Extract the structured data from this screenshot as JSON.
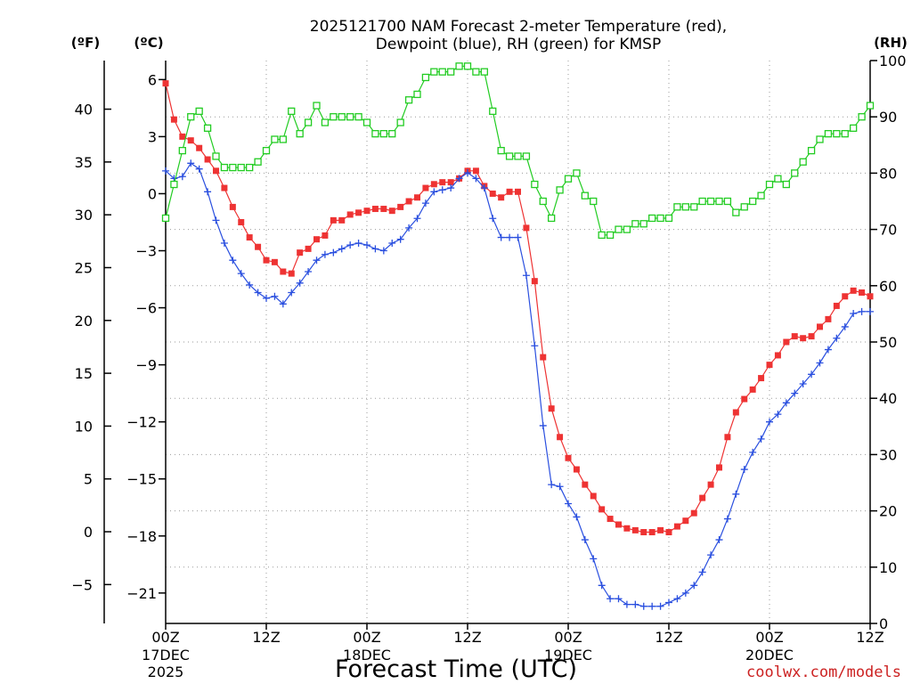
{
  "chart_data": {
    "type": "line",
    "title_line1": "2025121700 NAM Forecast 2-meter Temperature (red),",
    "title_line2": "Dewpoint (blue), RH (green) for KMSP",
    "unit_f": "(ºF)",
    "unit_c": "(ºC)",
    "unit_rh": "(RH)",
    "xlabel": "Forecast Time (UTC)",
    "credit": "coolwx.com/models",
    "x_hours_range": [
      0,
      84
    ],
    "c_range": [
      -22.6,
      7.0
    ],
    "rh_range": [
      0,
      100
    ],
    "c_ticks": [
      6,
      3,
      0,
      -3,
      -6,
      -9,
      -12,
      -15,
      -18,
      -21
    ],
    "c_tick_labels": [
      "6",
      "3",
      "0",
      "−3",
      "−6",
      "−9",
      "−12",
      "−15",
      "−18",
      "−21"
    ],
    "f_ticks": [
      40,
      35,
      30,
      25,
      20,
      15,
      10,
      5,
      0,
      -5
    ],
    "f_tick_labels": [
      "40",
      "35",
      "30",
      "25",
      "20",
      "15",
      "10",
      "5",
      "0",
      "−5"
    ],
    "rh_ticks": [
      100,
      90,
      80,
      70,
      60,
      50,
      40,
      30,
      20,
      10,
      0
    ],
    "rh_tick_labels": [
      "100",
      "90",
      "80",
      "70",
      "60",
      "50",
      "40",
      "30",
      "20",
      "10",
      "0"
    ],
    "x_ticks": [
      {
        "h": 0,
        "time": "00Z",
        "date": "17DEC",
        "year": "2025"
      },
      {
        "h": 12,
        "time": "12Z",
        "date": "",
        "year": ""
      },
      {
        "h": 24,
        "time": "00Z",
        "date": "18DEC",
        "year": ""
      },
      {
        "h": 36,
        "time": "12Z",
        "date": "",
        "year": ""
      },
      {
        "h": 48,
        "time": "00Z",
        "date": "19DEC",
        "year": ""
      },
      {
        "h": 60,
        "time": "12Z",
        "date": "",
        "year": ""
      },
      {
        "h": 72,
        "time": "00Z",
        "date": "20DEC",
        "year": ""
      },
      {
        "h": 84,
        "time": "12Z",
        "date": "",
        "year": ""
      }
    ],
    "series": [
      {
        "name": "Temperature",
        "unit": "C",
        "color": "#ee3333",
        "marker": "filled-square",
        "points": [
          [
            0,
            5.8
          ],
          [
            1,
            3.9
          ],
          [
            2,
            3.0
          ],
          [
            3,
            2.8
          ],
          [
            4,
            2.4
          ],
          [
            5,
            1.8
          ],
          [
            6,
            1.2
          ],
          [
            7,
            0.3
          ],
          [
            8,
            -0.7
          ],
          [
            9,
            -1.5
          ],
          [
            10,
            -2.3
          ],
          [
            11,
            -2.8
          ],
          [
            12,
            -3.5
          ],
          [
            13,
            -3.6
          ],
          [
            14,
            -4.1
          ],
          [
            15,
            -4.2
          ],
          [
            16,
            -3.1
          ],
          [
            17,
            -2.9
          ],
          [
            18,
            -2.4
          ],
          [
            19,
            -2.2
          ],
          [
            20,
            -1.4
          ],
          [
            21,
            -1.4
          ],
          [
            22,
            -1.1
          ],
          [
            23,
            -1.0
          ],
          [
            24,
            -0.9
          ],
          [
            25,
            -0.8
          ],
          [
            26,
            -0.8
          ],
          [
            27,
            -0.9
          ],
          [
            28,
            -0.7
          ],
          [
            29,
            -0.4
          ],
          [
            30,
            -0.2
          ],
          [
            31,
            0.3
          ],
          [
            32,
            0.5
          ],
          [
            33,
            0.6
          ],
          [
            34,
            0.6
          ],
          [
            35,
            0.8
          ],
          [
            36,
            1.2
          ],
          [
            37,
            1.2
          ],
          [
            38,
            0.4
          ],
          [
            39,
            0.0
          ],
          [
            40,
            -0.2
          ],
          [
            41,
            0.1
          ],
          [
            42,
            0.1
          ],
          [
            43,
            -1.8
          ],
          [
            44,
            -4.6
          ],
          [
            45,
            -8.6
          ],
          [
            46,
            -11.3
          ],
          [
            47,
            -12.8
          ],
          [
            48,
            -13.9
          ],
          [
            49,
            -14.5
          ],
          [
            50,
            -15.3
          ],
          [
            51,
            -15.9
          ],
          [
            52,
            -16.6
          ],
          [
            53,
            -17.1
          ],
          [
            54,
            -17.4
          ],
          [
            55,
            -17.6
          ],
          [
            56,
            -17.7
          ],
          [
            57,
            -17.8
          ],
          [
            58,
            -17.8
          ],
          [
            59,
            -17.7
          ],
          [
            60,
            -17.8
          ],
          [
            61,
            -17.5
          ],
          [
            62,
            -17.2
          ],
          [
            63,
            -16.8
          ],
          [
            64,
            -16.0
          ],
          [
            65,
            -15.3
          ],
          [
            66,
            -14.4
          ],
          [
            67,
            -12.8
          ],
          [
            68,
            -11.5
          ],
          [
            69,
            -10.8
          ],
          [
            70,
            -10.3
          ],
          [
            71,
            -9.7
          ],
          [
            72,
            -9.0
          ],
          [
            73,
            -8.5
          ],
          [
            74,
            -7.8
          ],
          [
            75,
            -7.5
          ],
          [
            76,
            -7.6
          ],
          [
            77,
            -7.5
          ],
          [
            78,
            -7.0
          ],
          [
            79,
            -6.6
          ],
          [
            80,
            -5.9
          ],
          [
            81,
            -5.4
          ],
          [
            82,
            -5.1
          ],
          [
            83,
            -5.2
          ],
          [
            84,
            -5.4
          ]
        ]
      },
      {
        "name": "Dewpoint",
        "unit": "C",
        "color": "#2a4fdf",
        "marker": "plus",
        "points": [
          [
            0,
            1.2
          ],
          [
            1,
            0.8
          ],
          [
            2,
            0.9
          ],
          [
            3,
            1.6
          ],
          [
            4,
            1.3
          ],
          [
            5,
            0.1
          ],
          [
            6,
            -1.4
          ],
          [
            7,
            -2.6
          ],
          [
            8,
            -3.5
          ],
          [
            9,
            -4.2
          ],
          [
            10,
            -4.8
          ],
          [
            11,
            -5.2
          ],
          [
            12,
            -5.5
          ],
          [
            13,
            -5.4
          ],
          [
            14,
            -5.8
          ],
          [
            15,
            -5.2
          ],
          [
            16,
            -4.7
          ],
          [
            17,
            -4.1
          ],
          [
            18,
            -3.5
          ],
          [
            19,
            -3.2
          ],
          [
            20,
            -3.1
          ],
          [
            21,
            -2.9
          ],
          [
            22,
            -2.7
          ],
          [
            23,
            -2.6
          ],
          [
            24,
            -2.7
          ],
          [
            25,
            -2.9
          ],
          [
            26,
            -3.0
          ],
          [
            27,
            -2.6
          ],
          [
            28,
            -2.4
          ],
          [
            29,
            -1.8
          ],
          [
            30,
            -1.3
          ],
          [
            31,
            -0.5
          ],
          [
            32,
            0.1
          ],
          [
            33,
            0.2
          ],
          [
            34,
            0.3
          ],
          [
            35,
            0.8
          ],
          [
            36,
            1.1
          ],
          [
            37,
            0.8
          ],
          [
            38,
            0.3
          ],
          [
            39,
            -1.3
          ],
          [
            40,
            -2.3
          ],
          [
            41,
            -2.3
          ],
          [
            42,
            -2.3
          ],
          [
            43,
            -4.3
          ],
          [
            44,
            -8.0
          ],
          [
            45,
            -12.2
          ],
          [
            46,
            -15.3
          ],
          [
            47,
            -15.4
          ],
          [
            48,
            -16.3
          ],
          [
            49,
            -17.0
          ],
          [
            50,
            -18.2
          ],
          [
            51,
            -19.2
          ],
          [
            52,
            -20.6
          ],
          [
            53,
            -21.3
          ],
          [
            54,
            -21.3
          ],
          [
            55,
            -21.6
          ],
          [
            56,
            -21.6
          ],
          [
            57,
            -21.7
          ],
          [
            58,
            -21.7
          ],
          [
            59,
            -21.7
          ],
          [
            60,
            -21.5
          ],
          [
            61,
            -21.3
          ],
          [
            62,
            -21.0
          ],
          [
            63,
            -20.6
          ],
          [
            64,
            -19.9
          ],
          [
            65,
            -19.0
          ],
          [
            66,
            -18.2
          ],
          [
            67,
            -17.1
          ],
          [
            68,
            -15.8
          ],
          [
            69,
            -14.5
          ],
          [
            70,
            -13.6
          ],
          [
            71,
            -12.9
          ],
          [
            72,
            -12.0
          ],
          [
            73,
            -11.6
          ],
          [
            74,
            -11.0
          ],
          [
            75,
            -10.5
          ],
          [
            76,
            -10.0
          ],
          [
            77,
            -9.5
          ],
          [
            78,
            -8.9
          ],
          [
            79,
            -8.2
          ],
          [
            80,
            -7.6
          ],
          [
            81,
            -7.0
          ],
          [
            82,
            -6.3
          ],
          [
            83,
            -6.2
          ],
          [
            84,
            -6.2
          ]
        ]
      },
      {
        "name": "RH",
        "unit": "%",
        "color": "#22cc22",
        "marker": "open-square",
        "points": [
          [
            0,
            72
          ],
          [
            1,
            78
          ],
          [
            2,
            84
          ],
          [
            3,
            90
          ],
          [
            4,
            91
          ],
          [
            5,
            88
          ],
          [
            6,
            83
          ],
          [
            7,
            81
          ],
          [
            8,
            81
          ],
          [
            9,
            81
          ],
          [
            10,
            81
          ],
          [
            11,
            82
          ],
          [
            12,
            84
          ],
          [
            13,
            86
          ],
          [
            14,
            86
          ],
          [
            15,
            91
          ],
          [
            16,
            87
          ],
          [
            17,
            89
          ],
          [
            18,
            92
          ],
          [
            19,
            89
          ],
          [
            20,
            90
          ],
          [
            21,
            90
          ],
          [
            22,
            90
          ],
          [
            23,
            90
          ],
          [
            24,
            89
          ],
          [
            25,
            87
          ],
          [
            26,
            87
          ],
          [
            27,
            87
          ],
          [
            28,
            89
          ],
          [
            29,
            93
          ],
          [
            30,
            94
          ],
          [
            31,
            97
          ],
          [
            32,
            98
          ],
          [
            33,
            98
          ],
          [
            34,
            98
          ],
          [
            35,
            99
          ],
          [
            36,
            99
          ],
          [
            37,
            98
          ],
          [
            38,
            98
          ],
          [
            39,
            91
          ],
          [
            40,
            84
          ],
          [
            41,
            83
          ],
          [
            42,
            83
          ],
          [
            43,
            83
          ],
          [
            44,
            78
          ],
          [
            45,
            75
          ],
          [
            46,
            72
          ],
          [
            47,
            77
          ],
          [
            48,
            79
          ],
          [
            49,
            80
          ],
          [
            50,
            76
          ],
          [
            51,
            75
          ],
          [
            52,
            69
          ],
          [
            53,
            69
          ],
          [
            54,
            70
          ],
          [
            55,
            70
          ],
          [
            56,
            71
          ],
          [
            57,
            71
          ],
          [
            58,
            72
          ],
          [
            59,
            72
          ],
          [
            60,
            72
          ],
          [
            61,
            74
          ],
          [
            62,
            74
          ],
          [
            63,
            74
          ],
          [
            64,
            75
          ],
          [
            65,
            75
          ],
          [
            66,
            75
          ],
          [
            67,
            75
          ],
          [
            68,
            73
          ],
          [
            69,
            74
          ],
          [
            70,
            75
          ],
          [
            71,
            76
          ],
          [
            72,
            78
          ],
          [
            73,
            79
          ],
          [
            74,
            78
          ],
          [
            75,
            80
          ],
          [
            76,
            82
          ],
          [
            77,
            84
          ],
          [
            78,
            86
          ],
          [
            79,
            87
          ],
          [
            80,
            87
          ],
          [
            81,
            87
          ],
          [
            82,
            88
          ],
          [
            83,
            90
          ],
          [
            84,
            92
          ]
        ]
      }
    ]
  }
}
